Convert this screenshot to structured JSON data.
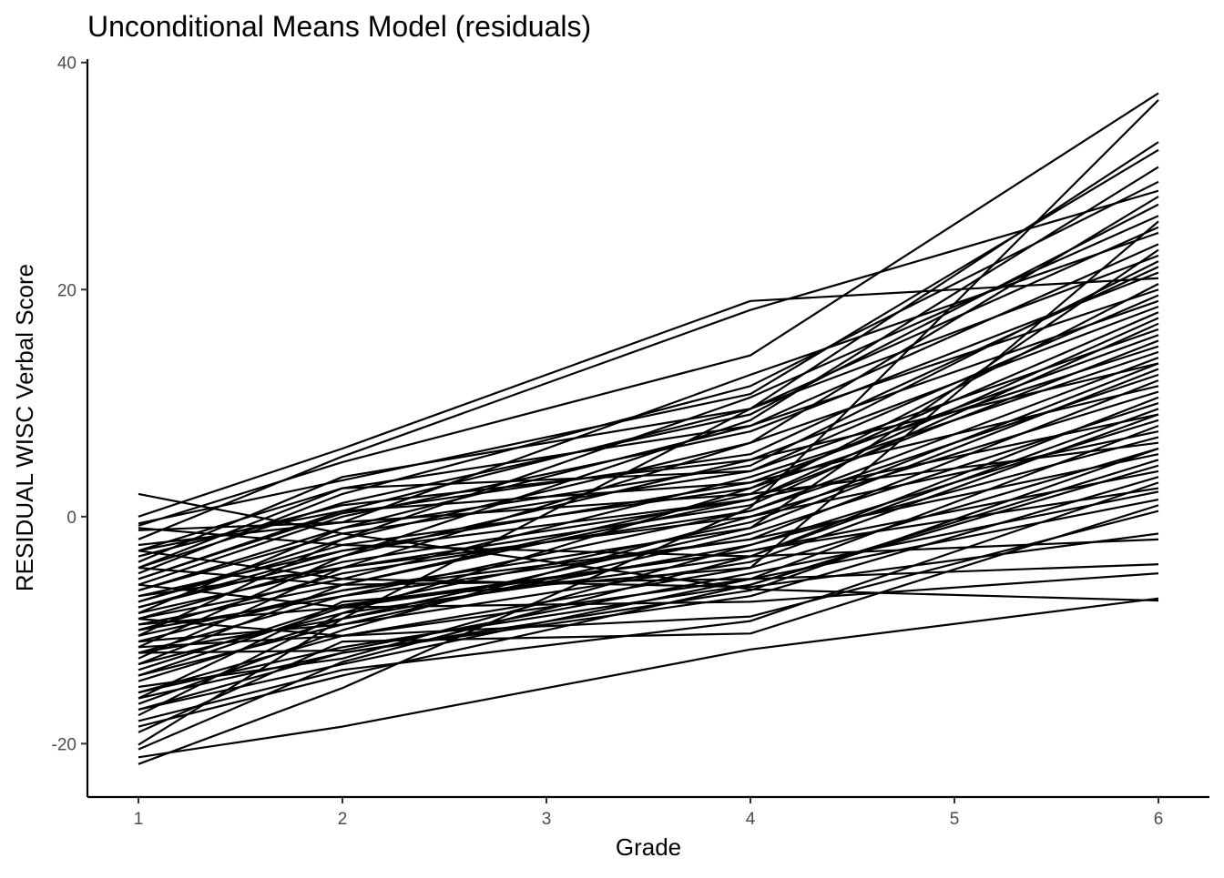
{
  "chart_data": {
    "type": "line",
    "title": "Unconditional Means Model (residuals)",
    "xlabel": "Grade",
    "ylabel": "RESIDUAL WISC Verbal Score",
    "x": [
      1,
      2,
      4,
      6
    ],
    "xlim": [
      0.75,
      6.25
    ],
    "ylim": [
      -24.7,
      40.3
    ],
    "x_ticks": [
      1,
      2,
      3,
      4,
      5,
      6
    ],
    "y_ticks": [
      -20,
      0,
      20,
      40
    ],
    "grid": false,
    "legend": "none",
    "line_color": "#000000",
    "series": [
      {
        "values": [
          2.0,
          -1.5,
          -6.4,
          -7.4
        ]
      },
      {
        "values": [
          -21.2,
          -18.5,
          -11.7,
          -7.2
        ]
      },
      {
        "values": [
          -21.8,
          -15.1,
          0.8,
          36.7
        ]
      },
      {
        "values": [
          -20.1,
          -9.0,
          9.5,
          33.0
        ]
      },
      {
        "values": [
          0.0,
          6.0,
          19.0,
          21.0
        ]
      },
      {
        "values": [
          -2.0,
          5.3,
          18.2,
          28.7
        ]
      },
      {
        "values": [
          -0.8,
          4.8,
          14.2,
          37.3
        ]
      },
      {
        "values": [
          -0.6,
          3.2,
          10.8,
          32.3
        ]
      },
      {
        "values": [
          -1.2,
          -0.5,
          12.5,
          25.0
        ]
      },
      {
        "values": [
          -3.0,
          2.5,
          8.0,
          24.0
        ]
      },
      {
        "values": [
          -4.5,
          1.2,
          9.0,
          27.5
        ]
      },
      {
        "values": [
          -5.5,
          0.3,
          5.5,
          22.0
        ]
      },
      {
        "values": [
          -6.5,
          -1.5,
          4.0,
          19.5
        ]
      },
      {
        "values": [
          -7.5,
          -2.5,
          2.5,
          18.0
        ]
      },
      {
        "values": [
          -8.0,
          -3.0,
          3.0,
          16.0
        ]
      },
      {
        "values": [
          -9.0,
          -4.0,
          1.5,
          15.5
        ]
      },
      {
        "values": [
          -10.0,
          -5.0,
          0.5,
          14.0
        ]
      },
      {
        "values": [
          -11.0,
          -6.5,
          -1.0,
          13.0
        ]
      },
      {
        "values": [
          -12.0,
          -7.0,
          -2.0,
          12.0
        ]
      },
      {
        "values": [
          -13.0,
          -8.5,
          -3.5,
          10.5
        ]
      },
      {
        "values": [
          -14.0,
          -9.5,
          -4.0,
          9.0
        ]
      },
      {
        "values": [
          -15.5,
          -10.5,
          -5.5,
          8.0
        ]
      },
      {
        "values": [
          -17.0,
          -12.0,
          -6.5,
          6.0
        ]
      },
      {
        "values": [
          -18.0,
          -13.5,
          -9.2,
          3.0
        ]
      },
      {
        "values": [
          -19.0,
          -11.0,
          -10.3,
          1.0
        ]
      },
      {
        "values": [
          -16.0,
          -7.5,
          -4.5,
          26.0
        ]
      },
      {
        "values": [
          -14.5,
          -9.0,
          -1.0,
          23.5
        ]
      },
      {
        "values": [
          -12.5,
          -4.5,
          6.5,
          28.2
        ]
      },
      {
        "values": [
          -11.5,
          -3.5,
          8.5,
          30.8
        ]
      },
      {
        "values": [
          -10.5,
          -2.0,
          10.5,
          26.5
        ]
      },
      {
        "values": [
          -9.5,
          -6.0,
          2.0,
          20.5
        ]
      },
      {
        "values": [
          -8.5,
          -1.0,
          4.5,
          22.5
        ]
      },
      {
        "values": [
          -7.0,
          -4.5,
          1.0,
          17.0
        ]
      },
      {
        "values": [
          -6.0,
          0.0,
          7.5,
          21.5
        ]
      },
      {
        "values": [
          -5.0,
          2.0,
          11.5,
          29.5
        ]
      },
      {
        "values": [
          -4.0,
          3.5,
          9.5,
          25.5
        ]
      },
      {
        "values": [
          -3.5,
          1.0,
          5.0,
          13.5
        ]
      },
      {
        "values": [
          -2.5,
          -0.5,
          2.0,
          6.5
        ]
      },
      {
        "values": [
          -1.0,
          -2.5,
          -3.5,
          -2.0
        ]
      },
      {
        "values": [
          -4.5,
          -6.0,
          -5.5,
          -4.2
        ]
      },
      {
        "values": [
          -3.0,
          -5.5,
          -6.2,
          -1.5
        ]
      },
      {
        "values": [
          -6.0,
          -8.0,
          -7.5,
          -5.0
        ]
      },
      {
        "values": [
          -9.0,
          -10.5,
          -8.8,
          0.5
        ]
      },
      {
        "values": [
          -12.0,
          -11.8,
          -5.0,
          2.2
        ]
      },
      {
        "values": [
          -13.5,
          -7.8,
          -3.0,
          4.0
        ]
      },
      {
        "values": [
          -15.0,
          -12.5,
          -2.5,
          7.0
        ]
      },
      {
        "values": [
          -16.5,
          -10.0,
          0.0,
          11.0
        ]
      },
      {
        "values": [
          -17.5,
          -8.5,
          2.5,
          14.5
        ]
      },
      {
        "values": [
          -18.5,
          -14.0,
          -6.0,
          5.0
        ]
      },
      {
        "values": [
          -20.5,
          -12.8,
          -3.5,
          9.5
        ]
      },
      {
        "values": [
          -11.0,
          -9.5,
          -1.5,
          10.0
        ]
      },
      {
        "values": [
          -10.0,
          -7.0,
          0.5,
          12.5
        ]
      },
      {
        "values": [
          -9.0,
          -5.5,
          3.5,
          15.0
        ]
      },
      {
        "values": [
          -8.0,
          -3.5,
          5.0,
          18.5
        ]
      },
      {
        "values": [
          -7.5,
          -2.0,
          6.5,
          19.0
        ]
      },
      {
        "values": [
          -6.5,
          -1.0,
          8.0,
          20.0
        ]
      },
      {
        "values": [
          -5.5,
          0.5,
          9.5,
          23.0
        ]
      },
      {
        "values": [
          -4.5,
          2.5,
          4.0,
          16.5
        ]
      },
      {
        "values": [
          -3.0,
          0.5,
          3.0,
          11.5
        ]
      },
      {
        "values": [
          -13.0,
          -6.0,
          1.5,
          17.5
        ]
      },
      {
        "values": [
          -14.0,
          -8.0,
          -0.5,
          13.5
        ]
      },
      {
        "values": [
          -12.0,
          -9.0,
          -2.5,
          8.5
        ]
      },
      {
        "values": [
          -11.5,
          -10.5,
          -4.5,
          6.0
        ]
      },
      {
        "values": [
          -15.5,
          -11.5,
          -6.0,
          4.5
        ]
      },
      {
        "values": [
          -16.0,
          -12.0,
          -7.0,
          3.5
        ]
      },
      {
        "values": [
          -17.0,
          -13.0,
          -5.5,
          1.5
        ]
      },
      {
        "values": [
          -8.5,
          -4.5,
          0.0,
          7.5
        ]
      },
      {
        "values": [
          -7.0,
          -3.0,
          1.5,
          9.0
        ]
      },
      {
        "values": [
          -10.5,
          -6.5,
          -2.0,
          5.5
        ]
      },
      {
        "values": [
          -9.5,
          -8.0,
          -3.0,
          2.5
        ]
      }
    ]
  }
}
